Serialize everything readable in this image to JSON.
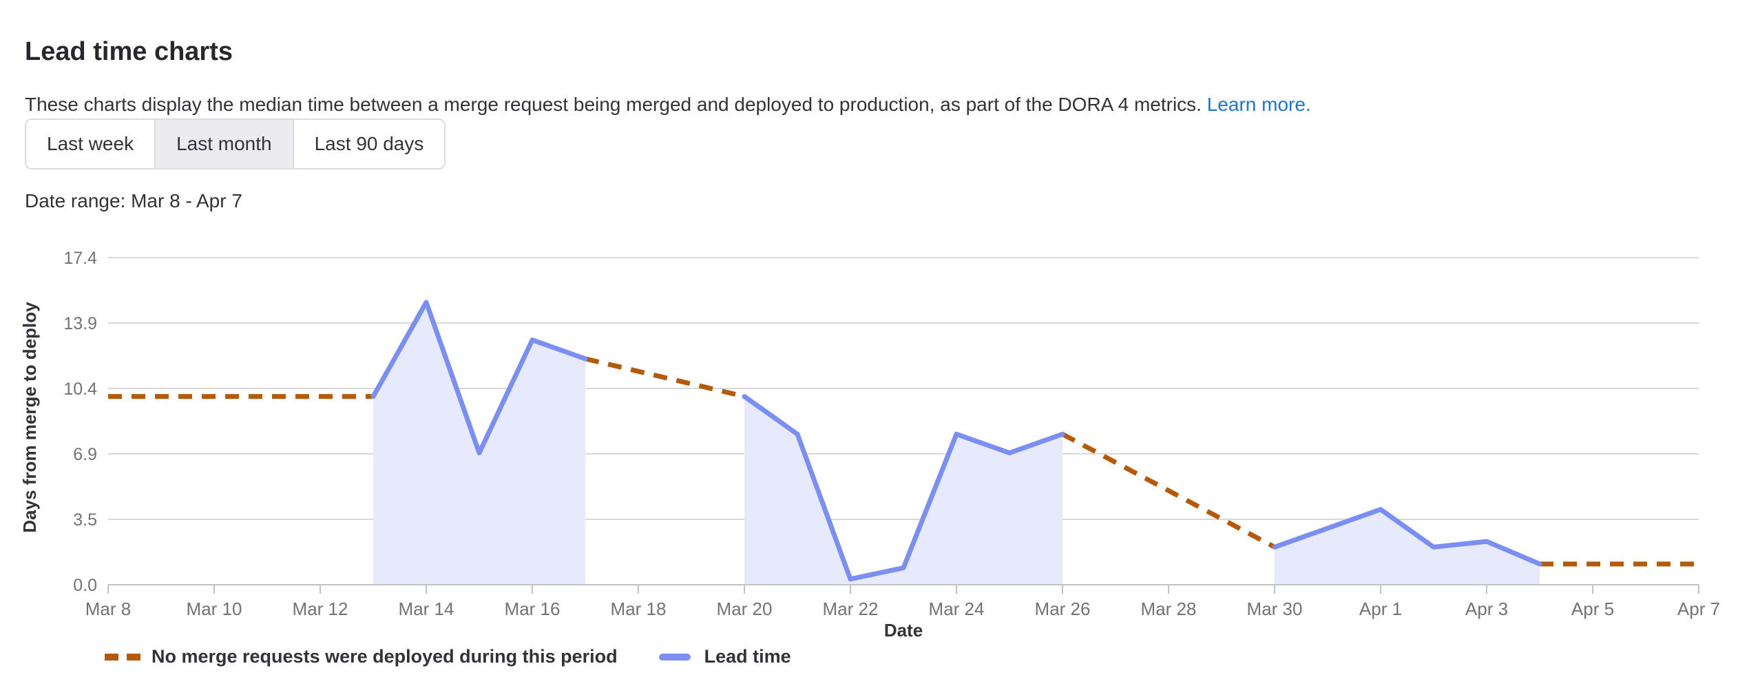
{
  "page": {
    "title": "Lead time charts",
    "description": "These charts display the median time between a merge request being merged and deployed to production, as part of the DORA 4 metrics.",
    "learn_more_label": "Learn more.",
    "date_range_label": "Date range: Mar 8 - Apr 7"
  },
  "time_filters": {
    "options": [
      {
        "label": "Last week",
        "selected": false
      },
      {
        "label": "Last month",
        "selected": true
      },
      {
        "label": "Last 90 days",
        "selected": false
      }
    ]
  },
  "chart_data": {
    "type": "line",
    "xlabel": "Date",
    "ylabel": "Days from merge to deploy",
    "ylim": [
      0,
      17.375
    ],
    "grid": true,
    "y_tick_labels": [
      "0.0",
      "3.5",
      "6.9",
      "10.4",
      "13.9",
      "17.4"
    ],
    "x_tick_labels": [
      "Mar 8",
      "Mar 10",
      "Mar 12",
      "Mar 14",
      "Mar 16",
      "Mar 18",
      "Mar 20",
      "Mar 22",
      "Mar 24",
      "Mar 26",
      "Mar 28",
      "Mar 30",
      "Apr 1",
      "Apr 3",
      "Apr 5",
      "Apr 7"
    ],
    "x_tick_step_days": 2,
    "colors": {
      "no_deploy_line": "#b45a0a",
      "lead_time_line": "#7b8ff2",
      "lead_time_area": "#e6eafc"
    },
    "segments": [
      {
        "series": "no-deploy",
        "style": "dashed",
        "points": [
          [
            "Mar 8",
            10
          ],
          [
            "Mar 13",
            10
          ]
        ]
      },
      {
        "series": "lead-time",
        "style": "solid-area",
        "points": [
          [
            "Mar 13",
            10
          ],
          [
            "Mar 14",
            15
          ],
          [
            "Mar 15",
            7
          ],
          [
            "Mar 16",
            13
          ],
          [
            "Mar 17",
            12
          ]
        ]
      },
      {
        "series": "no-deploy",
        "style": "dashed",
        "points": [
          [
            "Mar 17",
            12
          ],
          [
            "Mar 20",
            10
          ]
        ]
      },
      {
        "series": "lead-time",
        "style": "solid-area",
        "points": [
          [
            "Mar 20",
            10
          ],
          [
            "Mar 21",
            8
          ],
          [
            "Mar 22",
            0.3
          ],
          [
            "Mar 23",
            0.9
          ],
          [
            "Mar 24",
            8
          ],
          [
            "Mar 25",
            7
          ],
          [
            "Mar 26",
            8
          ]
        ]
      },
      {
        "series": "no-deploy",
        "style": "dashed",
        "points": [
          [
            "Mar 26",
            8
          ],
          [
            "Mar 30",
            2
          ]
        ]
      },
      {
        "series": "lead-time",
        "style": "solid-area",
        "points": [
          [
            "Mar 30",
            2
          ],
          [
            "Apr 1",
            4
          ],
          [
            "Apr 2",
            2
          ],
          [
            "Apr 3",
            2.3
          ],
          [
            "Apr 4",
            1.1
          ]
        ]
      },
      {
        "series": "no-deploy",
        "style": "dashed",
        "points": [
          [
            "Apr 4",
            1.1
          ],
          [
            "Apr 7",
            1.1
          ]
        ]
      }
    ],
    "legend": [
      {
        "label": "No merge requests were deployed during this period",
        "color": "#b45a0a",
        "style": "dashed"
      },
      {
        "label": "Lead time",
        "color": "#7b8ff2",
        "style": "solid"
      }
    ]
  }
}
